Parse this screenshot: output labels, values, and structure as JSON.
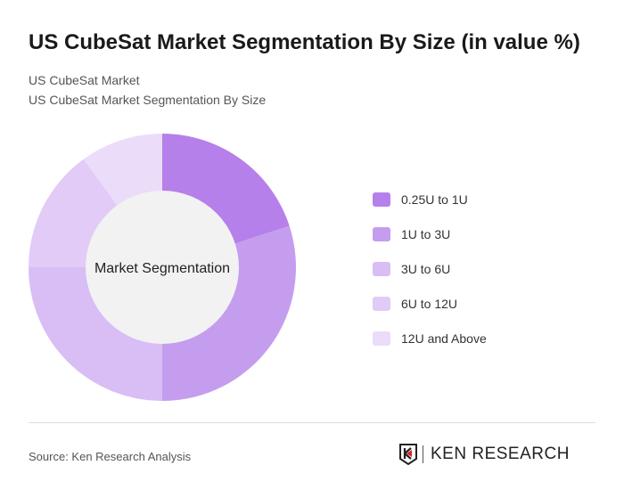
{
  "title": "US CubeSat Market Segmentation By Size (in value %)",
  "subtitle1": "US CubeSat Market",
  "subtitle2": "US CubeSat Market Segmentation By Size",
  "source": "Source: Ken Research Analysis",
  "logo": "KEN RESEARCH",
  "chart_data": {
    "type": "donut",
    "center_label": "Market Segmentation",
    "categories": [
      "0.25U to 1U",
      "1U to 3U",
      "3U to 6U",
      "6U to 12U",
      "12U and Above"
    ],
    "values": [
      20,
      30,
      25,
      15,
      10
    ],
    "unit": "%",
    "colors": [
      "#b580ea",
      "#c59def",
      "#d9bdf5",
      "#e2cbf7",
      "#ebdcfa"
    ],
    "legend": "right"
  }
}
